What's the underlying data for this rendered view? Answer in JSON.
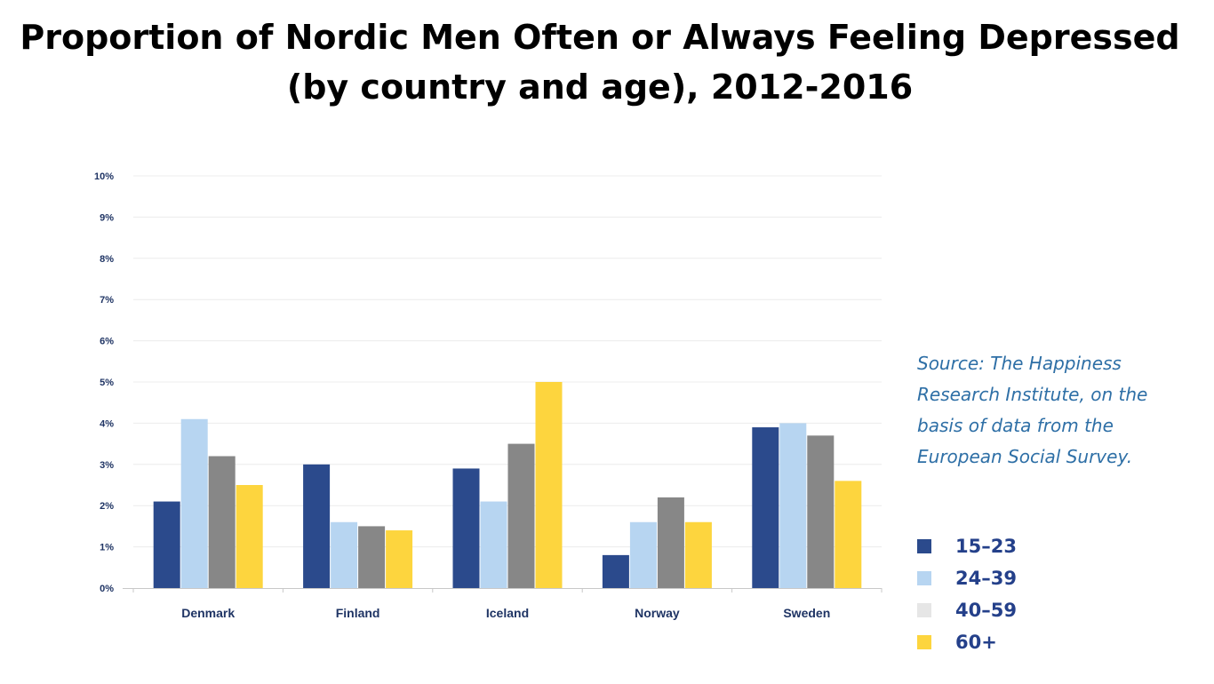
{
  "title_line1": "Proportion of Nordic Men Often or Always Feeling Depressed",
  "title_line2": "(by country and age), 2012-2016",
  "source_text": "Source: The Happiness Research Institute, on the basis of data from the European Social Survey.",
  "legend": [
    {
      "label": "15–23",
      "color": "#2b4a8c"
    },
    {
      "label": "24–39",
      "color": "#b7d5f1"
    },
    {
      "label": "40–59",
      "color": "#e6e6e6"
    },
    {
      "label": "60+",
      "color": "#fdd53e"
    }
  ],
  "chart_data": {
    "type": "bar",
    "title": "",
    "xlabel": "",
    "ylabel": "",
    "categories": [
      "Denmark",
      "Finland",
      "Iceland",
      "Norway",
      "Sweden"
    ],
    "series": [
      {
        "name": "15–23",
        "color": "#2b4a8c",
        "values": [
          2.1,
          3.0,
          2.9,
          0.8,
          3.9
        ]
      },
      {
        "name": "24–39",
        "color": "#b7d5f1",
        "values": [
          4.1,
          1.6,
          2.1,
          1.6,
          4.0
        ]
      },
      {
        "name": "40–59",
        "color": "#878787",
        "values": [
          3.2,
          1.5,
          3.5,
          2.2,
          3.7
        ]
      },
      {
        "name": "60+",
        "color": "#fdd53e",
        "values": [
          2.5,
          1.4,
          5.0,
          1.6,
          2.6
        ]
      }
    ],
    "ylim": [
      0,
      10
    ],
    "yticks": [
      "0%",
      "1%",
      "2%",
      "3%",
      "4%",
      "5%",
      "6%",
      "7%",
      "8%",
      "9%",
      "10%"
    ],
    "grid": true,
    "legend_position": "right"
  }
}
